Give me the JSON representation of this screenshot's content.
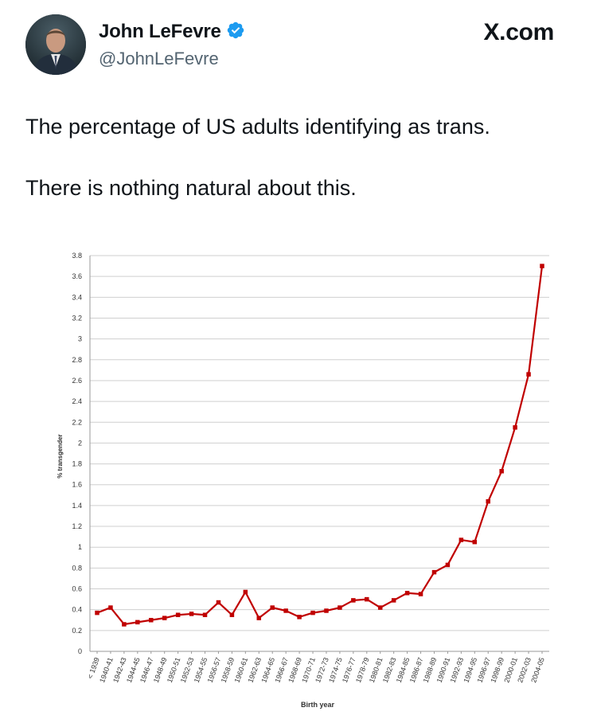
{
  "header": {
    "display_name": "John LeFevre",
    "handle": "@JohnLeFevre",
    "site": "X.com"
  },
  "tweet": {
    "line1": "The percentage of US adults identifying as trans.",
    "line2": "There is nothing natural about this."
  },
  "colors": {
    "series": "#c00000",
    "verified": "#1d9bf0",
    "grid": "#cfcfcf"
  },
  "chart_data": {
    "type": "line",
    "title": "",
    "xlabel": "Birth year",
    "ylabel": "% transgender",
    "ylim": [
      0,
      3.8
    ],
    "yticks": [
      "0",
      "0.2",
      "0.4",
      "0.6",
      "0.8",
      "1",
      "1.2",
      "1.4",
      "1.6",
      "1.8",
      "2",
      "2.2",
      "2.4",
      "2.6",
      "2.8",
      "3",
      "3.2",
      "3.4",
      "3.6",
      "3.8"
    ],
    "grid": true,
    "categories": [
      "< 1939",
      "1940-41",
      "1942-43",
      "1944-45",
      "1946-47",
      "1948-49",
      "1950-51",
      "1952-53",
      "1954-55",
      "1956-57",
      "1958-59",
      "1960-61",
      "1962-63",
      "1964-65",
      "1966-67",
      "1968-69",
      "1970-71",
      "1972-73",
      "1974-75",
      "1976-77",
      "1978-79",
      "1980-81",
      "1982-83",
      "1984-85",
      "1986-87",
      "1988-89",
      "1990-91",
      "1992-93",
      "1994-95",
      "1996-97",
      "1998-99",
      "2000-01",
      "2002-03",
      "2004-05"
    ],
    "values": [
      0.37,
      0.42,
      0.26,
      0.28,
      0.3,
      0.32,
      0.35,
      0.36,
      0.35,
      0.47,
      0.35,
      0.57,
      0.32,
      0.42,
      0.39,
      0.33,
      0.37,
      0.39,
      0.42,
      0.49,
      0.5,
      0.42,
      0.49,
      0.56,
      0.55,
      0.76,
      0.83,
      1.07,
      1.05,
      1.44,
      1.73,
      2.15,
      2.66,
      3.7
    ]
  }
}
